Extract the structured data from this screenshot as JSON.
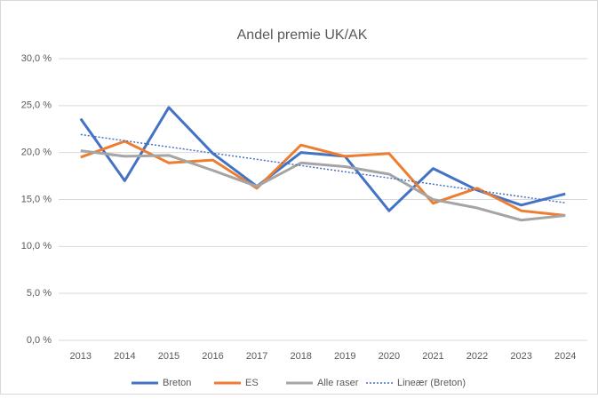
{
  "chart_data": {
    "type": "line",
    "title": "Andel premie UK/AK",
    "categories": [
      "2013",
      "2014",
      "2015",
      "2016",
      "2017",
      "2018",
      "2019",
      "2020",
      "2021",
      "2022",
      "2023",
      "2024"
    ],
    "series": [
      {
        "name": "Breton",
        "color": "#4472c4",
        "values": [
          23.6,
          17.0,
          24.8,
          19.9,
          16.4,
          20.0,
          19.6,
          13.8,
          18.3,
          16.0,
          14.4,
          15.6
        ]
      },
      {
        "name": "ES",
        "color": "#ed7d31",
        "values": [
          19.5,
          21.2,
          18.9,
          19.2,
          16.2,
          20.8,
          19.6,
          19.9,
          14.6,
          16.2,
          13.8,
          13.3
        ]
      },
      {
        "name": "Alle raser",
        "color": "#a5a5a5",
        "values": [
          20.2,
          19.6,
          19.7,
          18.1,
          16.4,
          18.9,
          18.5,
          17.7,
          15.0,
          14.1,
          12.8,
          13.3
        ]
      }
    ],
    "trendline": {
      "name": "Lineær (Breton)",
      "color": "#4472c4"
    },
    "ylim": [
      0,
      30
    ],
    "yticks": [
      {
        "value": 0,
        "label": "0,0 %"
      },
      {
        "value": 5,
        "label": "5,0 %"
      },
      {
        "value": 10,
        "label": "10,0 %"
      },
      {
        "value": 15,
        "label": "15,0 %"
      },
      {
        "value": 20,
        "label": "20,0 %"
      },
      {
        "value": 25,
        "label": "25,0 %"
      },
      {
        "value": 30,
        "label": "30,0 %"
      }
    ],
    "grid": true,
    "legend": "bottom"
  }
}
